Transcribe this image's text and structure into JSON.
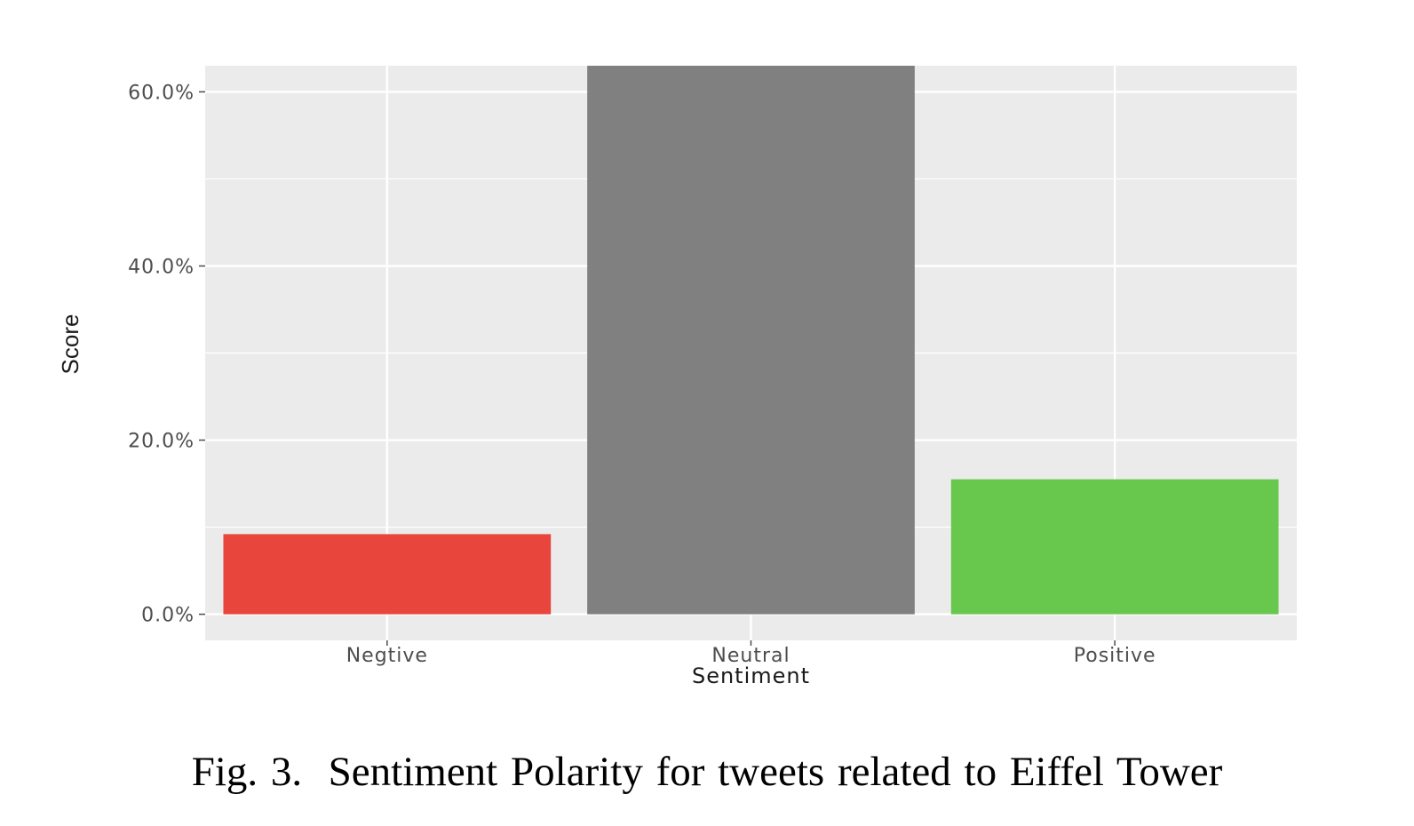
{
  "chart_data": {
    "type": "bar",
    "categories": [
      "Negtive",
      "Neutral",
      "Positive"
    ],
    "values": [
      9.2,
      63.0,
      15.5
    ],
    "xlabel": "Sentiment",
    "ylabel": "Score",
    "ylim": [
      -3.0,
      63.0
    ],
    "yticks": [
      0,
      20,
      40,
      60
    ],
    "ytick_labels": [
      "0.0%",
      "20.0%",
      "40.0%",
      "60.0%"
    ],
    "grid": true,
    "legend": "none",
    "colors": [
      "#e8453c",
      "#808080",
      "#67c84d"
    ],
    "panel_background": "#ebebeb",
    "grid_color": "#ffffff"
  },
  "caption": "Fig. 3.  Sentiment Polarity for tweets related to Eiffel Tower"
}
